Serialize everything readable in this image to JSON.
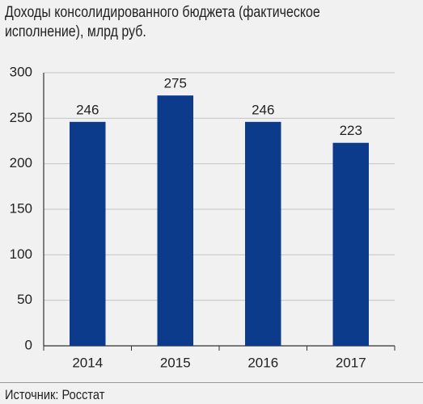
{
  "chart_data": {
    "type": "bar",
    "title": "Доходы консолидированного бюджета (фактическое исполнение), млрд руб.",
    "source": "Источник: Росстат",
    "categories": [
      "2014",
      "2015",
      "2016",
      "2017"
    ],
    "values": [
      246,
      275,
      246,
      223
    ],
    "color": "#0d3b8c",
    "ylim": [
      0,
      300
    ],
    "yticks": [
      0,
      50,
      100,
      150,
      200,
      250,
      300
    ],
    "grid": true
  }
}
